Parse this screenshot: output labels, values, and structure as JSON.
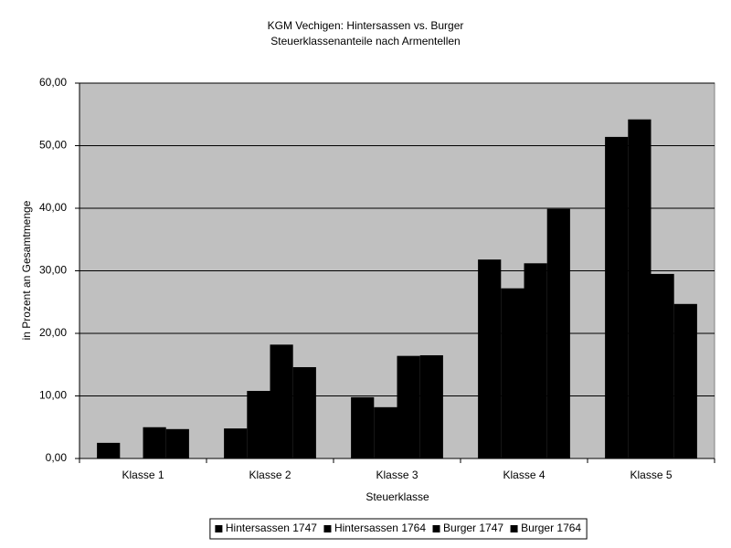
{
  "chart_data": {
    "type": "bar",
    "title": "KGM Vechigen: Hintersassen vs. Burger",
    "subtitle": "Steuerklassenanteile nach Armentellen",
    "x_label": "Steuerklasse",
    "y_label": "in Prozent an Gesamtmenge",
    "categories": [
      "Klasse 1",
      "Klasse 2",
      "Klasse 3",
      "Klasse 4",
      "Klasse 5"
    ],
    "series": [
      {
        "name": "Hintersassen 1747",
        "color": "#000000",
        "values": [
          2.5,
          4.8,
          9.8,
          31.8,
          51.4
        ]
      },
      {
        "name": "Hintersassen 1764",
        "color": "#000000",
        "values": [
          0,
          10.8,
          8.2,
          27.2,
          54.2
        ]
      },
      {
        "name": "Burger 1747",
        "color": "#000000",
        "values": [
          5.0,
          18.2,
          16.4,
          31.2,
          29.5
        ]
      },
      {
        "name": "Burger 1764",
        "color": "#000000",
        "values": [
          4.7,
          14.6,
          16.5,
          39.9,
          24.7
        ]
      }
    ],
    "ylim": [
      0,
      60
    ],
    "yticks": [
      {
        "value": 0,
        "label": "0,00"
      },
      {
        "value": 10,
        "label": "10,00"
      },
      {
        "value": 20,
        "label": "20,00"
      },
      {
        "value": 30,
        "label": "30,00"
      },
      {
        "value": 40,
        "label": "40,00"
      },
      {
        "value": 50,
        "label": "50,00"
      },
      {
        "value": 60,
        "label": "60,00"
      }
    ],
    "grid": true,
    "legend": "bottom"
  }
}
